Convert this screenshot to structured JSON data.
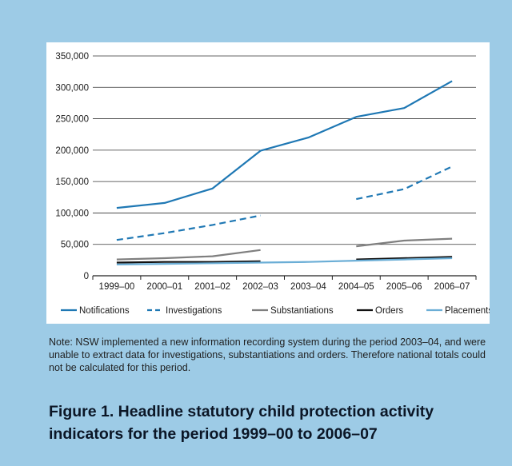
{
  "note": "Note: NSW implemented a new information recording system during the period 2003–04, and were unable to extract data for investigations, substantiations and orders. Therefore national totals could not be calculated for this period.",
  "caption": "Figure 1. Headline statutory child protection activity indicators for the period 1999–00 to 2006–07",
  "chart_data": {
    "type": "line",
    "title": "",
    "xlabel": "",
    "ylabel": "",
    "ylim": [
      0,
      350000
    ],
    "yticks": [
      0,
      50000,
      100000,
      150000,
      200000,
      250000,
      300000,
      350000
    ],
    "ytick_labels": [
      "0",
      "50,000",
      "100,000",
      "150,000",
      "200,000",
      "250,000",
      "300,000",
      "350,000"
    ],
    "categories": [
      "1999–00",
      "2000–01",
      "2001–02",
      "2002–03",
      "2003–04",
      "2004–05",
      "2005–06",
      "2006–07"
    ],
    "grid": true,
    "legend_position": "bottom",
    "series": [
      {
        "name": "Notifications",
        "color": "#1f78b4",
        "dash": false,
        "values": [
          108000,
          116000,
          139000,
          199000,
          220000,
          253000,
          267000,
          310000
        ]
      },
      {
        "name": "Investigations",
        "color": "#1f78b4",
        "dash": true,
        "values": [
          57000,
          68000,
          81000,
          96000,
          null,
          122000,
          138000,
          174000
        ]
      },
      {
        "name": "Substantiations",
        "color": "#7f7f7f",
        "dash": false,
        "values": [
          26000,
          28000,
          31000,
          41000,
          null,
          47000,
          56000,
          59000
        ]
      },
      {
        "name": "Orders",
        "color": "#111111",
        "dash": false,
        "values": [
          21000,
          22000,
          22000,
          23000,
          null,
          26000,
          28000,
          30000
        ]
      },
      {
        "name": "Placements",
        "color": "#6baed6",
        "dash": false,
        "values": [
          18000,
          19000,
          20000,
          21000,
          22000,
          24000,
          26000,
          28000
        ]
      }
    ]
  }
}
